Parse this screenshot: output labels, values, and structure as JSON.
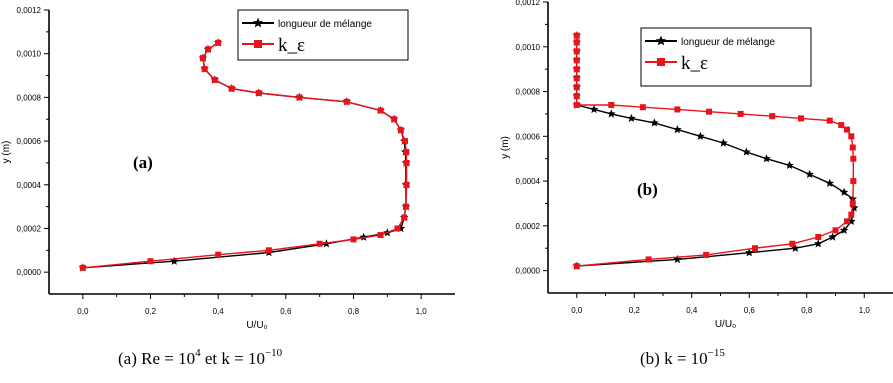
{
  "chart_data": [
    {
      "type": "line",
      "panel_label": "(a)",
      "caption": {
        "prefix": "(a)  Re = 10",
        "re_exp": "4",
        "mid": "  et  k = 10",
        "k_exp": "−10"
      },
      "xlabel": "U/U₀",
      "ylabel": "y (m)",
      "xlim": [
        -0.1,
        1.1
      ],
      "ylim": [
        -0.0001,
        0.0012
      ],
      "xticks": [
        "0,0",
        "0,2",
        "0,4",
        "0,6",
        "0,8",
        "1,0"
      ],
      "yticks": [
        "0,0000",
        "0,0002",
        "0,0004",
        "0,0006",
        "0,0008",
        "0,0010",
        "0,0012"
      ],
      "legend_position": "top-right",
      "series": [
        {
          "name": "longueur de mélange",
          "color": "#000000",
          "marker": "star",
          "x": [
            0.0,
            0.27,
            0.55,
            0.72,
            0.83,
            0.9,
            0.94,
            0.95,
            0.955,
            0.955,
            0.955,
            0.953,
            0.95,
            0.94,
            0.92,
            0.88,
            0.78,
            0.64,
            0.52,
            0.44,
            0.39,
            0.36,
            0.355,
            0.37,
            0.4
          ],
          "y": [
            2e-05,
            5e-05,
            9e-05,
            0.00013,
            0.00016,
            0.00018,
            0.0002,
            0.00025,
            0.0003,
            0.0004,
            0.0005,
            0.00055,
            0.0006,
            0.00065,
            0.0007,
            0.00074,
            0.00078,
            0.0008,
            0.00082,
            0.00084,
            0.00088,
            0.00093,
            0.00098,
            0.00102,
            0.00105
          ]
        },
        {
          "name": "k_ε",
          "color": "#e8141c",
          "marker": "square",
          "x": [
            0.0,
            0.2,
            0.4,
            0.55,
            0.7,
            0.8,
            0.88,
            0.93,
            0.95,
            0.955,
            0.957,
            0.957,
            0.956,
            0.952,
            0.94,
            0.92,
            0.88,
            0.78,
            0.64,
            0.52,
            0.44,
            0.39,
            0.36,
            0.355,
            0.37,
            0.4
          ],
          "y": [
            2e-05,
            5e-05,
            8e-05,
            0.0001,
            0.00013,
            0.00015,
            0.00017,
            0.0002,
            0.00025,
            0.0003,
            0.0004,
            0.0005,
            0.00055,
            0.0006,
            0.00065,
            0.0007,
            0.00074,
            0.00078,
            0.0008,
            0.00082,
            0.00084,
            0.00088,
            0.00093,
            0.00098,
            0.00102,
            0.00105
          ]
        }
      ]
    },
    {
      "type": "line",
      "panel_label": "(b)",
      "caption": {
        "prefix": "(b)  k = 10",
        "k_exp": "−15"
      },
      "xlabel": "U/U₀",
      "ylabel": "y (m)",
      "xlim": [
        -0.1,
        1.1
      ],
      "ylim": [
        -0.0001,
        0.0012
      ],
      "xticks": [
        "0,0",
        "0,2",
        "0,4",
        "0,6",
        "0,8",
        "1,0"
      ],
      "yticks": [
        "0,0000",
        "0,0002",
        "0,0004",
        "0,0006",
        "0,0008",
        "0,0010",
        "0,0012"
      ],
      "legend_position": "top-right",
      "series": [
        {
          "name": "longueur de mélange",
          "color": "#000000",
          "marker": "star",
          "x": [
            0.0,
            0.35,
            0.6,
            0.76,
            0.84,
            0.89,
            0.93,
            0.955,
            0.965,
            0.96,
            0.93,
            0.88,
            0.81,
            0.74,
            0.66,
            0.59,
            0.51,
            0.43,
            0.35,
            0.27,
            0.19,
            0.12,
            0.06,
            0.0,
            0.0,
            0.0,
            0.0,
            0.0,
            0.0,
            0.0,
            0.0,
            0.0
          ],
          "y": [
            2e-05,
            5e-05,
            8e-05,
            0.0001,
            0.00012,
            0.00015,
            0.00018,
            0.00022,
            0.00028,
            0.00032,
            0.00035,
            0.00039,
            0.00043,
            0.00047,
            0.0005,
            0.00053,
            0.00057,
            0.0006,
            0.00063,
            0.00066,
            0.00068,
            0.0007,
            0.00072,
            0.00074,
            0.00078,
            0.00082,
            0.00086,
            0.0009,
            0.00094,
            0.00098,
            0.00102,
            0.00105
          ]
        },
        {
          "name": "k_ε",
          "color": "#e8141c",
          "marker": "square",
          "x": [
            0.0,
            0.25,
            0.45,
            0.62,
            0.75,
            0.84,
            0.9,
            0.94,
            0.955,
            0.96,
            0.962,
            0.962,
            0.96,
            0.955,
            0.94,
            0.92,
            0.88,
            0.78,
            0.68,
            0.57,
            0.46,
            0.35,
            0.23,
            0.12,
            0.0,
            0.0,
            0.0,
            0.0,
            0.0,
            0.0,
            0.0,
            0.0,
            0.0
          ],
          "y": [
            2e-05,
            5e-05,
            7e-05,
            0.0001,
            0.00012,
            0.00015,
            0.00018,
            0.00022,
            0.00025,
            0.0003,
            0.0004,
            0.0005,
            0.00055,
            0.0006,
            0.00063,
            0.00065,
            0.00067,
            0.00068,
            0.00069,
            0.0007,
            0.00071,
            0.00072,
            0.00073,
            0.00074,
            0.00074,
            0.00078,
            0.00082,
            0.00086,
            0.0009,
            0.00094,
            0.00098,
            0.00102,
            0.00105
          ]
        }
      ]
    }
  ]
}
